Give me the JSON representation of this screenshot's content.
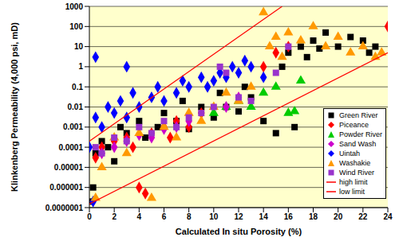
{
  "chart_data": {
    "type": "scatter",
    "x_label": "Calculated In situ Porosity (%)",
    "y_label": "Klinkenberg Permeability (4,000 psi, mD)",
    "log": "y",
    "grid": true,
    "legend": "lower right",
    "xlim": [
      0,
      24
    ],
    "xticks": [
      0,
      2,
      4,
      6,
      8,
      10,
      12,
      14,
      16,
      18,
      20,
      22,
      24
    ],
    "ylim": [
      1e-07,
      1000
    ],
    "yticks": [
      {
        "value": 1e-07,
        "label": "0.0000001"
      },
      1e-06,
      1e-05,
      0.0001,
      0.001,
      0.01,
      0.1,
      1,
      10,
      100,
      1000
    ],
    "series": [
      {
        "name": "Green River",
        "color": "#000000",
        "marker": "square",
        "x": [
          0,
          0.3,
          0.5,
          1,
          1.5,
          2,
          2.5,
          3,
          4,
          4.5,
          5.5,
          6,
          7,
          7.5,
          8,
          9,
          10,
          10.5,
          11,
          12,
          12.5,
          13,
          14,
          15,
          15.5,
          16,
          17,
          17.5,
          18,
          18.5,
          19,
          20,
          21,
          22,
          22.5,
          23,
          16.5
        ],
        "values": [
          2e-07,
          1e-06,
          5e-05,
          0.0002,
          0.0001,
          2e-05,
          0.001,
          0.0005,
          0.002,
          0.0003,
          0.001,
          0.005,
          0.002,
          0.02,
          0.0008,
          0.01,
          0.003,
          0.05,
          0.01,
          0.006,
          0.1,
          0.03,
          0.002,
          0.0005,
          1,
          5,
          10,
          3,
          20,
          8,
          50,
          10,
          30,
          20,
          5,
          10,
          0.001
        ]
      },
      {
        "name": "Piceance",
        "color": "#ff0000",
        "marker": "diamond",
        "x": [
          0.5,
          1,
          2,
          3,
          3.5,
          4,
          4.5,
          5,
          6,
          6.5,
          7,
          8,
          9,
          14,
          15,
          16,
          24
        ],
        "values": [
          3e-05,
          0.0001,
          0.0002,
          0.0003,
          0.0001,
          1e-06,
          5e-07,
          0.0005,
          0.001,
          0.0003,
          0.002,
          0.001,
          0.005,
          1,
          5,
          10,
          100
        ]
      },
      {
        "name": "Powder River",
        "color": "#00cc00",
        "marker": "triangle",
        "x": [
          10,
          11,
          12,
          13,
          14,
          15,
          16,
          16.5,
          17
        ],
        "values": [
          0.005,
          0.01,
          0.02,
          0.01,
          0.05,
          0.1,
          0.005,
          0.006,
          0.2
        ]
      },
      {
        "name": "Sand Wash",
        "color": "#cc00cc",
        "marker": "diamond",
        "x": [
          1,
          2,
          3,
          4,
          5,
          6,
          7,
          8,
          11,
          12
        ],
        "values": [
          5e-05,
          0.0001,
          0.0002,
          0.0004,
          0.0003,
          0.0008,
          0.001,
          0.002,
          0.01,
          0.03
        ]
      },
      {
        "name": "Uintah",
        "color": "#0000ff",
        "marker": "diamond",
        "x": [
          0,
          0.3,
          0.5,
          1,
          1.5,
          2,
          2.5,
          3,
          3.5,
          4,
          5,
          5.5,
          6,
          7,
          7.5,
          8,
          9,
          9.5,
          10,
          10.5,
          11,
          11.5,
          12,
          12.5,
          13,
          14,
          0.5,
          3
        ],
        "values": [
          0.0001,
          2e-07,
          0.003,
          0.001,
          0.01,
          0.005,
          0.02,
          0.003,
          0.05,
          0.01,
          0.03,
          0.1,
          0.02,
          0.05,
          0.2,
          0.1,
          0.3,
          0.1,
          0.2,
          0.5,
          0.3,
          1,
          0.5,
          2,
          1,
          0.3,
          3,
          1
        ]
      },
      {
        "name": "Washakie",
        "color": "#ff9900",
        "marker": "triangle",
        "x": [
          0.5,
          1,
          2,
          3,
          4,
          5,
          6,
          7,
          8,
          9,
          10,
          11,
          12,
          13,
          14,
          14.5,
          15,
          15.5,
          16,
          17,
          18,
          19,
          20,
          21,
          22,
          23,
          23.5
        ],
        "values": [
          3e-07,
          1e-05,
          0.0003,
          5e-05,
          0.0005,
          3e-07,
          0.001,
          0.0003,
          0.005,
          0.002,
          0.01,
          0.05,
          0.02,
          0.1,
          500,
          10,
          30,
          3,
          50,
          20,
          100,
          10,
          30,
          5,
          10,
          3,
          5
        ]
      },
      {
        "name": "Wind River",
        "color": "#9933cc",
        "marker": "square",
        "x": [
          0.5,
          1,
          2,
          3,
          4,
          5,
          6,
          7,
          8,
          9,
          10,
          10.5,
          11,
          12,
          13,
          15,
          16
        ],
        "values": [
          0.0001,
          5e-05,
          0.0003,
          0.0002,
          0.001,
          0.0005,
          0.002,
          0.001,
          0.003,
          0.005,
          0.01,
          1,
          0.5,
          0.03,
          0.02,
          0.5,
          10
        ]
      },
      {
        "name": "high limit",
        "color": "#ff0000",
        "type": "line",
        "marker": "none",
        "line_style": "solid",
        "x": [
          0,
          15.5
        ],
        "values": [
          0.0002,
          1000
        ]
      },
      {
        "name": "low limit",
        "color": "#ff0000",
        "type": "line",
        "marker": "none",
        "line_style": "solid",
        "x": [
          0,
          24
        ],
        "values": [
          1.5e-07,
          5
        ]
      }
    ]
  }
}
